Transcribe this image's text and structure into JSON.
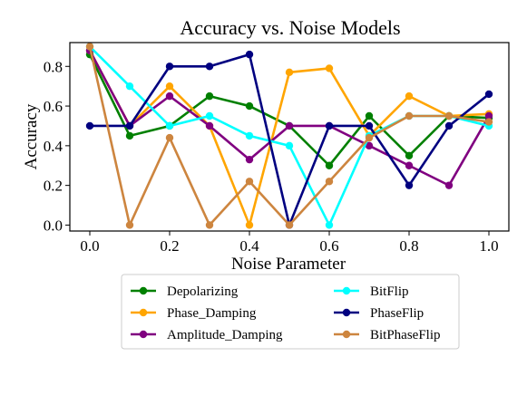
{
  "chart_data": {
    "type": "line",
    "title": "Accuracy vs. Noise Models",
    "xlabel": "Noise Parameter",
    "ylabel": "Accuracy",
    "xlim": [
      -0.05,
      1.05
    ],
    "ylim": [
      -0.03,
      0.92
    ],
    "xticks": [
      0.0,
      0.2,
      0.4,
      0.6,
      0.8,
      1.0
    ],
    "xtick_labels": [
      "0.0",
      "0.2",
      "0.4",
      "0.6",
      "0.8",
      "1.0"
    ],
    "yticks": [
      0.0,
      0.2,
      0.4,
      0.6,
      0.8
    ],
    "ytick_labels": [
      "0.0",
      "0.2",
      "0.4",
      "0.6",
      "0.8"
    ],
    "grid": false,
    "legend_position": "below",
    "x": [
      0.0,
      0.1,
      0.2,
      0.3,
      0.4,
      0.5,
      0.6,
      0.7,
      0.8,
      0.9,
      1.0
    ],
    "series": [
      {
        "name": "Depolarizing",
        "color": "#008000",
        "values": [
          0.86,
          0.45,
          0.5,
          0.65,
          0.6,
          0.5,
          0.3,
          0.55,
          0.35,
          0.55,
          0.54
        ]
      },
      {
        "name": "Phase_Damping",
        "color": "#FFA500",
        "values": [
          0.88,
          0.5,
          0.7,
          0.5,
          0.0,
          0.77,
          0.79,
          0.45,
          0.65,
          0.55,
          0.56
        ]
      },
      {
        "name": "Amplitude_Damping",
        "color": "#800080",
        "values": [
          0.88,
          0.5,
          0.65,
          0.5,
          0.33,
          0.5,
          0.5,
          0.4,
          0.3,
          0.2,
          0.55
        ]
      },
      {
        "name": "BitFlip",
        "color": "#00FFFF",
        "values": [
          0.9,
          0.7,
          0.5,
          0.55,
          0.45,
          0.4,
          0.0,
          0.45,
          0.55,
          0.55,
          0.5
        ]
      },
      {
        "name": "PhaseFlip",
        "color": "#000080",
        "values": [
          0.5,
          0.5,
          0.8,
          0.8,
          0.86,
          0.0,
          0.5,
          0.5,
          0.2,
          0.5,
          0.66
        ]
      },
      {
        "name": "BitPhaseFlip",
        "color": "#CD853F",
        "values": [
          0.9,
          0.0,
          0.44,
          0.0,
          0.22,
          0.0,
          0.22,
          0.44,
          0.55,
          0.55,
          0.52
        ]
      }
    ]
  }
}
